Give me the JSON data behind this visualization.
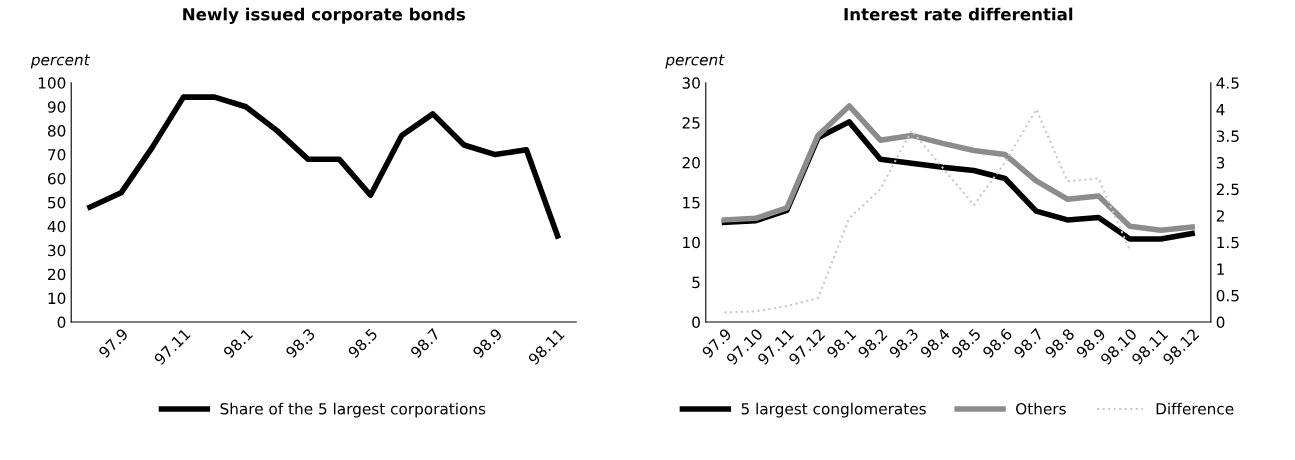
{
  "chart_data": [
    {
      "type": "line",
      "title": "Newly issued corporate bonds",
      "ylabel": "percent",
      "categories": [
        null,
        "97.9",
        null,
        "97.11",
        null,
        "98.1",
        null,
        "98.3",
        null,
        "98.5",
        null,
        "98.7",
        null,
        "98.9",
        null,
        "98.11"
      ],
      "series": [
        {
          "name": "Share of the 5 largest corporations",
          "color": "#000000",
          "values": [
            48,
            54,
            73,
            94,
            94,
            90,
            80,
            68,
            68,
            53,
            78,
            87,
            74,
            70,
            72,
            36
          ]
        }
      ],
      "ylim": [
        0,
        100
      ],
      "yticks": [
        0,
        10,
        20,
        30,
        40,
        50,
        60,
        70,
        80,
        90,
        100
      ],
      "grid": false,
      "legend": "bottom"
    },
    {
      "type": "line",
      "title": "Interest rate differential",
      "ylabel": "percent",
      "categories": [
        "97.9",
        "97.10",
        "97.11",
        "97.12",
        "98.1",
        "98.2",
        "98.3",
        "98.4",
        "98.5",
        "98.6",
        "98.7",
        "98.8",
        "98.9",
        "98.10",
        "98.11",
        "98.12"
      ],
      "series": [
        {
          "name": "5 largest conglomerates",
          "color": "#000000",
          "values": [
            12.5,
            12.7,
            14.0,
            23.1,
            25.1,
            20.4,
            19.9,
            19.4,
            19.0,
            18.0,
            13.9,
            12.8,
            13.1,
            10.4,
            10.4,
            11.1
          ]
        },
        {
          "name": "Others",
          "color": "#8c8c8c",
          "values": [
            12.8,
            13.0,
            14.3,
            23.4,
            27.1,
            22.8,
            23.4,
            22.4,
            21.5,
            21.0,
            17.7,
            15.4,
            15.8,
            12.0,
            11.5,
            11.9
          ]
        },
        {
          "name": "Difference",
          "color": "#c8c8c8",
          "axis": "y2",
          "line_style": "dotted",
          "values": [
            0.18,
            0.2,
            0.3,
            0.45,
            1.95,
            2.5,
            3.6,
            2.9,
            2.2,
            3.0,
            4.0,
            2.65,
            2.7,
            1.35,
            null,
            null
          ]
        }
      ],
      "ylim": [
        0,
        30
      ],
      "yticks": [
        0,
        5,
        10,
        15,
        20,
        25,
        30
      ],
      "y2lim": [
        0,
        4.5
      ],
      "y2ticks": [
        0,
        0.5,
        1,
        1.5,
        2,
        2.5,
        3,
        3.5,
        4,
        4.5
      ],
      "grid": false,
      "legend": "bottom"
    }
  ]
}
